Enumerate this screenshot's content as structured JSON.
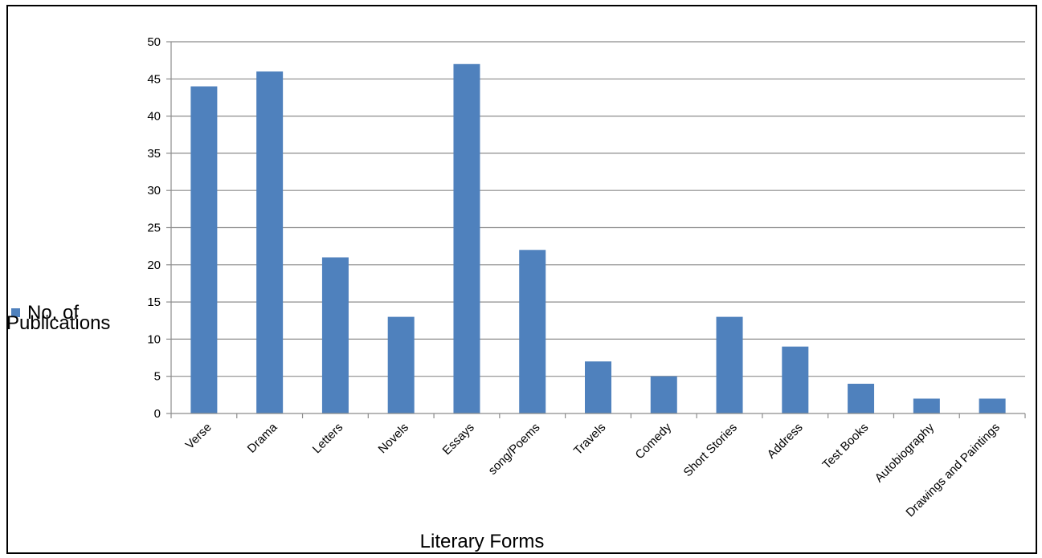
{
  "chart_data": {
    "type": "bar",
    "title": "",
    "xlabel": "Literary Forms",
    "ylabel": "",
    "ylim": [
      0,
      50
    ],
    "yticks": [
      0,
      5,
      10,
      15,
      20,
      25,
      30,
      35,
      40,
      45,
      50
    ],
    "grid": true,
    "legend": {
      "placement": "left",
      "line1": "No. of",
      "line2": "Publications"
    },
    "categories": [
      "Verse",
      "Drama",
      "Letters",
      "Novels",
      "Essays",
      "song/Poems",
      "Travels",
      "Comedy",
      "Short Stories",
      "Address",
      "Test Books",
      "Autobiography",
      "Drawings and Paintings"
    ],
    "series": [
      {
        "name": "No. of Publications",
        "color": "#4F81BD",
        "values": [
          44,
          46,
          21,
          13,
          47,
          22,
          7,
          5,
          13,
          9,
          4,
          2,
          2
        ]
      }
    ]
  }
}
